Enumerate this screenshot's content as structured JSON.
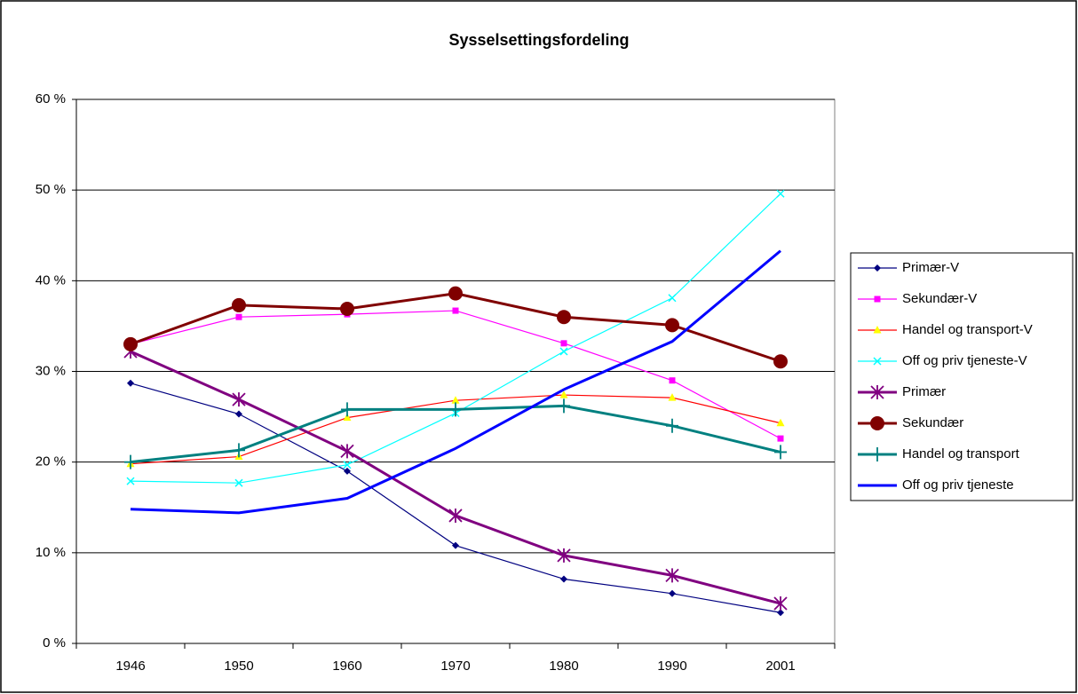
{
  "chart_data": {
    "type": "line",
    "title": "Sysselsettingsfordeling",
    "categories": [
      "1946",
      "1950",
      "1960",
      "1970",
      "1980",
      "1990",
      "2001"
    ],
    "ylim": [
      0,
      60
    ],
    "yticks": [
      {
        "value": 0,
        "label": "0 %"
      },
      {
        "value": 10,
        "label": "10 %"
      },
      {
        "value": 20,
        "label": "20 %"
      },
      {
        "value": 30,
        "label": "30 %"
      },
      {
        "value": 40,
        "label": "40 %"
      },
      {
        "value": 50,
        "label": "50 %"
      },
      {
        "value": 60,
        "label": "60 %"
      }
    ],
    "grid": true,
    "legend": "right",
    "series": [
      {
        "name": "Primær-V",
        "color": "#000080",
        "marker": "diamond",
        "values": [
          28.7,
          25.3,
          19.0,
          10.8,
          7.1,
          5.5,
          3.4
        ]
      },
      {
        "name": "Sekundær-V",
        "color": "#ff00ff",
        "marker": "square",
        "values": [
          33.0,
          36.0,
          36.3,
          36.7,
          33.1,
          29.0,
          22.6
        ]
      },
      {
        "name": "Handel og transport-V",
        "color": "#ff0000",
        "marker": "triangle",
        "markerColor": "#ffff00",
        "values": [
          19.8,
          20.6,
          24.9,
          26.8,
          27.4,
          27.1,
          24.3
        ]
      },
      {
        "name": "Off og priv tjeneste-V",
        "color": "#00ffff",
        "marker": "x",
        "values": [
          17.9,
          17.7,
          19.7,
          25.4,
          32.2,
          38.1,
          49.6
        ]
      },
      {
        "name": "Primær",
        "color": "#800080",
        "marker": "asterisk",
        "width": 3,
        "values": [
          32.2,
          26.9,
          21.2,
          14.1,
          9.7,
          7.5,
          4.4
        ]
      },
      {
        "name": "Sekundær",
        "color": "#800000",
        "marker": "circle",
        "width": 3,
        "values": [
          33.0,
          37.3,
          36.9,
          38.6,
          36.0,
          35.1,
          31.1
        ]
      },
      {
        "name": "Handel og transport",
        "color": "#008080",
        "marker": "plus",
        "width": 3,
        "values": [
          20.0,
          21.3,
          25.8,
          25.8,
          26.2,
          24.0,
          21.1
        ]
      },
      {
        "name": "Off og priv tjeneste",
        "color": "#0000ff",
        "marker": "none",
        "width": 3,
        "values": [
          14.8,
          14.4,
          16.0,
          21.5,
          28.0,
          33.3,
          43.3
        ]
      }
    ]
  }
}
